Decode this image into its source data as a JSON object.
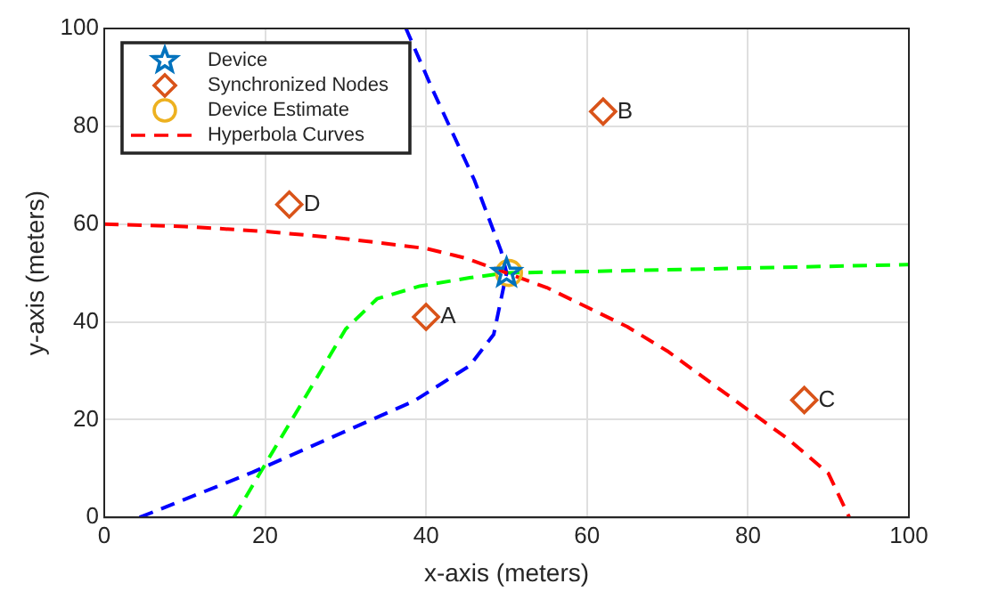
{
  "chart_data": {
    "type": "scatter",
    "xlabel": "x-axis (meters)",
    "ylabel": "y-axis (meters)",
    "xlim": [
      0,
      100
    ],
    "ylim": [
      0,
      100
    ],
    "xticks": [
      0,
      20,
      40,
      60,
      80,
      100
    ],
    "yticks": [
      0,
      20,
      40,
      60,
      80,
      100
    ],
    "grid": true,
    "legend": "top left",
    "series": [
      {
        "name": "Device",
        "type": "scatter",
        "marker": "star",
        "color": "#0072bd",
        "x": [
          50
        ],
        "values": [
          50
        ]
      },
      {
        "name": "Synchronized Nodes",
        "type": "scatter",
        "marker": "diamond",
        "color": "#d95319",
        "x": [
          40,
          62,
          87,
          23
        ],
        "values": [
          41,
          83,
          24,
          64
        ]
      },
      {
        "name": "Device Estimate",
        "type": "scatter",
        "marker": "circle",
        "color": "#edb120",
        "x": [
          50.3
        ],
        "values": [
          50
        ]
      },
      {
        "name": "Hyperbola Curves",
        "type": "line",
        "marker": "none",
        "line_style": "dashed",
        "color": "#ff0000",
        "x": [
          0,
          10,
          20,
          30,
          40,
          45,
          50,
          55,
          60,
          65,
          70,
          75,
          80,
          85,
          90,
          92.6
        ],
        "values": [
          60,
          59.5,
          58.5,
          57,
          55,
          53,
          50,
          47,
          43,
          39,
          34,
          28,
          22,
          16,
          9,
          0
        ]
      },
      {
        "type": "line",
        "marker": "none",
        "line_style": "dashed",
        "color": "#0000ff",
        "x": [
          4.4,
          18.4,
          38.5,
          45.4,
          48.4,
          50,
          49.3,
          46,
          40.8,
          37.5
        ],
        "values": [
          0,
          9.2,
          23.8,
          31,
          37.4,
          50,
          54.6,
          69,
          87.5,
          100
        ]
      },
      {
        "type": "line",
        "marker": "none",
        "line_style": "dashed",
        "color": "#00ff00",
        "x": [
          16.1,
          19.4,
          24.7,
          30,
          33.9,
          39.2,
          45.4,
          50,
          60,
          80,
          100
        ],
        "values": [
          0,
          9.2,
          23.8,
          38.5,
          44.7,
          47.3,
          49,
          50,
          50.3,
          51,
          51.7
        ]
      }
    ],
    "annotations": [
      {
        "text": "A",
        "x": 40,
        "y": 41
      },
      {
        "text": "B",
        "x": 62,
        "y": 83
      },
      {
        "text": "C",
        "x": 87,
        "y": 24
      },
      {
        "text": "D",
        "x": 23,
        "y": 64
      }
    ]
  }
}
